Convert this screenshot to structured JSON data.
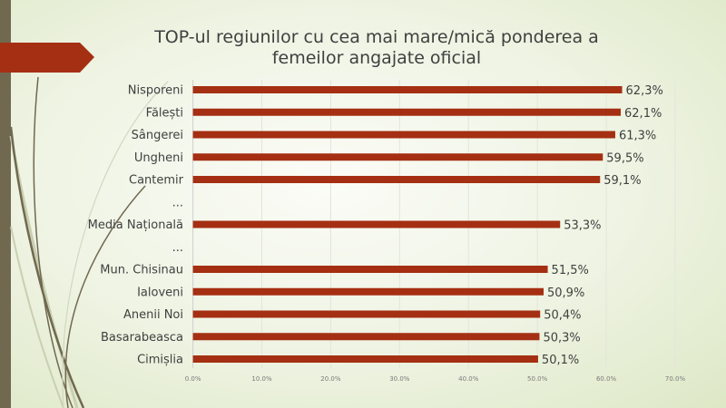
{
  "chart_data": {
    "type": "bar",
    "orientation": "horizontal",
    "title": "TOP-ul regiunilor cu cea mai mare/mică ponderea a femeilor angajate oficial",
    "title_lines": [
      "TOP-ul regiunilor cu cea mai mare/mică ponderea a",
      "femeilor angajate oficial"
    ],
    "categories": [
      "Nisporeni",
      "Fălești",
      "Sângerei",
      "Ungheni",
      "Cantemir",
      "...",
      "Media Națională",
      "...",
      "Mun. Chisinau",
      "Ialoveni",
      "Anenii Noi",
      "Basarabeasca",
      "Cimișlia"
    ],
    "values": [
      62.3,
      62.1,
      61.3,
      59.5,
      59.1,
      null,
      53.3,
      null,
      51.5,
      50.9,
      50.4,
      50.3,
      50.1
    ],
    "value_labels": [
      "62,3%",
      "62,1%",
      "61,3%",
      "59,5%",
      "59,1%",
      "",
      "53,3%",
      "",
      "51,5%",
      "50,9%",
      "50,4%",
      "50,3%",
      "50,1%"
    ],
    "xlim": [
      0,
      70
    ],
    "xticks": [
      0,
      10,
      20,
      30,
      40,
      50,
      60,
      70
    ],
    "xtick_labels": [
      "0.0%",
      "10.0%",
      "20.0%",
      "30.0%",
      "40.0%",
      "50.0%",
      "60.0%",
      "70.0%"
    ],
    "xlabel": "",
    "ylabel": "",
    "grid": true,
    "legend": "none",
    "bar_color": "#a52f12"
  },
  "colors": {
    "accent": "#a52f12",
    "sidebar": "#716850",
    "text": "#404040"
  }
}
